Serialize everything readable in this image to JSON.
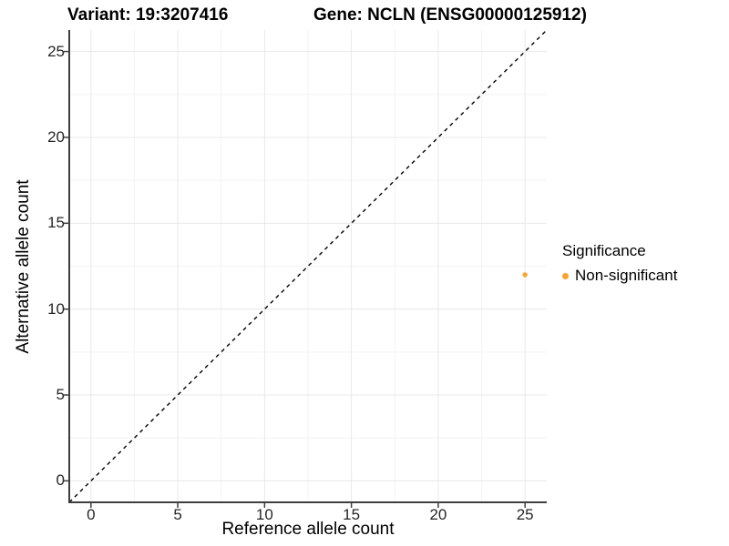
{
  "chart_data": {
    "type": "scatter",
    "title_left": "Variant: 19:3207416",
    "title_right": "Gene: NCLN (ENSG00000125912)",
    "xlabel": "Reference allele count",
    "ylabel": "Alternative allele count",
    "xlim": [
      -1.25,
      26.25
    ],
    "ylim": [
      -1.25,
      26.25
    ],
    "xticks": [
      0,
      5,
      10,
      15,
      20,
      25
    ],
    "yticks": [
      0,
      5,
      10,
      15,
      20,
      25
    ],
    "grid": "major and minor gridlines, white panel background",
    "points": [
      {
        "x": 25,
        "y": 12,
        "series": "Non-significant"
      }
    ],
    "identity_line": {
      "style": "dashed",
      "color": "#000000",
      "description": "y = x diagonal"
    },
    "legend": {
      "title": "Significance",
      "position": "right",
      "items": [
        {
          "label": "Non-significant",
          "color": "#F9A32D"
        }
      ]
    }
  },
  "colors": {
    "background": "#FFFFFF",
    "axis_line": "#3F3F3F",
    "tick_mark": "#3F3F3F",
    "tick_text": "#262626",
    "grid_major": "#E8E8E8",
    "grid_minor": "#F3F3F3",
    "point": "#F9A32D"
  }
}
